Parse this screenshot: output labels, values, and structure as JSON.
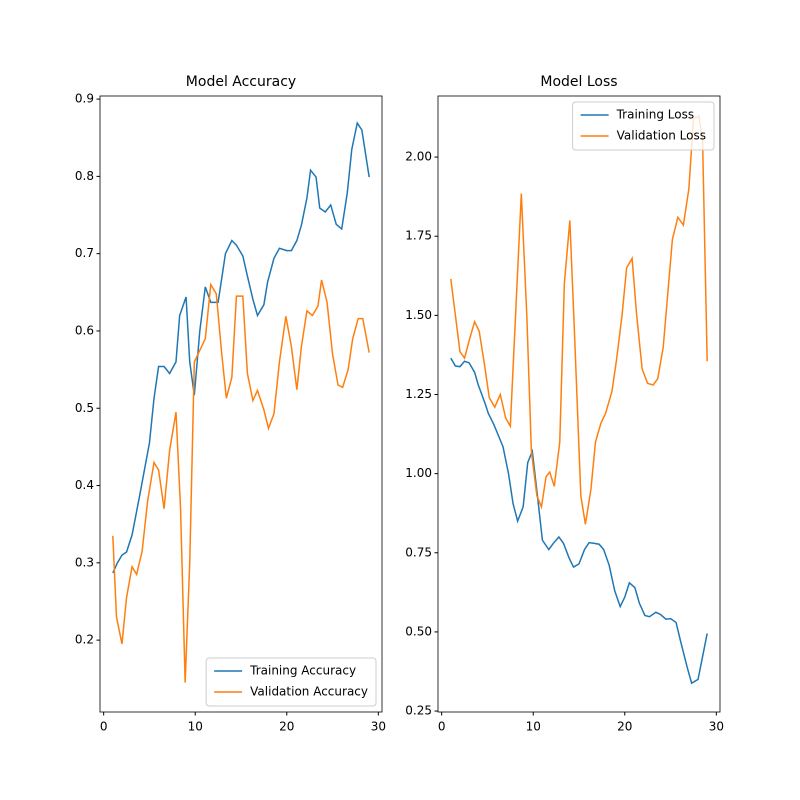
{
  "chart_data": [
    {
      "type": "line",
      "title": "Model Accuracy",
      "xlim": [
        -0.4,
        30.4
      ],
      "xticks": [
        0,
        10,
        20,
        30
      ],
      "ylim": [
        0.107,
        0.904
      ],
      "yticks": [
        0.2,
        0.3,
        0.4,
        0.5,
        0.6,
        0.7,
        0.8,
        0.9
      ],
      "legend": "lower right",
      "series": [
        {
          "name": "Training Accuracy",
          "color": "#1f77b4",
          "x": [
            1.0,
            1.5,
            2.0,
            2.5,
            3.1,
            3.9,
            5.0,
            5.5,
            6.0,
            6.6,
            7.2,
            7.9,
            8.3,
            9.0,
            9.4,
            9.9,
            10.5,
            11.1,
            11.7,
            12.5,
            13.3,
            14.0,
            14.5,
            15.2,
            15.7,
            16.3,
            16.8,
            17.5,
            17.9,
            18.6,
            19.2,
            20.0,
            20.5,
            21.1,
            21.6,
            22.2,
            22.6,
            23.2,
            23.6,
            24.2,
            24.8,
            25.4,
            26.0,
            26.6,
            27.1,
            27.7,
            28.2,
            29.0
          ],
          "values": [
            0.287,
            0.3,
            0.31,
            0.314,
            0.336,
            0.385,
            0.455,
            0.513,
            0.554,
            0.554,
            0.545,
            0.56,
            0.62,
            0.644,
            0.56,
            0.517,
            0.6,
            0.657,
            0.637,
            0.637,
            0.7,
            0.717,
            0.711,
            0.697,
            0.671,
            0.641,
            0.62,
            0.634,
            0.663,
            0.694,
            0.707,
            0.704,
            0.704,
            0.717,
            0.737,
            0.772,
            0.808,
            0.799,
            0.759,
            0.754,
            0.763,
            0.738,
            0.732,
            0.778,
            0.835,
            0.869,
            0.86,
            0.799
          ]
        },
        {
          "name": "Validation Accuracy",
          "color": "#ff7f0e",
          "x": [
            1.0,
            1.4,
            2.0,
            2.5,
            3.1,
            3.6,
            4.2,
            4.8,
            5.5,
            6.0,
            6.6,
            7.2,
            7.9,
            8.4,
            8.9,
            9.4,
            9.9,
            10.5,
            11.1,
            11.7,
            12.3,
            12.9,
            13.4,
            14.0,
            14.5,
            15.2,
            15.7,
            16.3,
            16.8,
            17.5,
            18.0,
            18.6,
            19.2,
            19.9,
            20.5,
            21.1,
            21.6,
            22.2,
            22.8,
            23.4,
            23.8,
            24.4,
            25.0,
            25.6,
            26.1,
            26.7,
            27.2,
            27.8,
            28.3,
            29.0
          ],
          "values": [
            0.335,
            0.23,
            0.195,
            0.255,
            0.295,
            0.285,
            0.315,
            0.38,
            0.43,
            0.42,
            0.37,
            0.445,
            0.495,
            0.37,
            0.145,
            0.3,
            0.56,
            0.575,
            0.59,
            0.66,
            0.648,
            0.57,
            0.513,
            0.54,
            0.645,
            0.645,
            0.545,
            0.51,
            0.523,
            0.498,
            0.474,
            0.493,
            0.56,
            0.619,
            0.58,
            0.524,
            0.58,
            0.626,
            0.62,
            0.632,
            0.666,
            0.637,
            0.57,
            0.53,
            0.527,
            0.55,
            0.59,
            0.616,
            0.616,
            0.572
          ]
        }
      ]
    },
    {
      "type": "line",
      "title": "Model Loss",
      "xlim": [
        -0.4,
        30.4
      ],
      "xticks": [
        0,
        10,
        20,
        30
      ],
      "ylim": [
        0.247,
        2.193
      ],
      "yticks": [
        0.25,
        {
          "value": 0.5,
          "label": "0.50"
        },
        0.75,
        {
          "value": 1,
          "label": "1.00"
        },
        1.25,
        {
          "value": 1.5,
          "label": "1.50"
        },
        1.75,
        {
          "value": 2,
          "label": "2.00"
        }
      ],
      "legend": "upper right",
      "series": [
        {
          "name": "Training Loss",
          "color": "#1f77b4",
          "x": [
            1.0,
            1.5,
            2.0,
            2.5,
            3.0,
            3.6,
            4.0,
            4.7,
            5.1,
            5.7,
            6.2,
            6.7,
            7.3,
            7.8,
            8.3,
            8.9,
            9.4,
            9.9,
            10.5,
            11.0,
            11.7,
            12.2,
            12.8,
            13.3,
            13.9,
            14.4,
            15.0,
            15.6,
            16.1,
            16.6,
            17.2,
            17.7,
            18.3,
            18.9,
            19.5,
            20.0,
            20.5,
            21.1,
            21.6,
            22.2,
            22.7,
            23.4,
            23.9,
            24.5,
            25.0,
            25.6,
            26.1,
            26.8,
            27.3,
            28.0,
            29.0
          ],
          "values": [
            1.365,
            1.34,
            1.338,
            1.355,
            1.35,
            1.32,
            1.28,
            1.225,
            1.19,
            1.155,
            1.12,
            1.085,
            1.0,
            0.905,
            0.85,
            0.895,
            1.035,
            1.07,
            0.92,
            0.79,
            0.76,
            0.78,
            0.8,
            0.78,
            0.735,
            0.705,
            0.715,
            0.76,
            0.782,
            0.78,
            0.777,
            0.76,
            0.71,
            0.63,
            0.58,
            0.61,
            0.655,
            0.64,
            0.59,
            0.552,
            0.548,
            0.562,
            0.555,
            0.54,
            0.542,
            0.53,
            0.47,
            0.39,
            0.338,
            0.35,
            0.495
          ]
        },
        {
          "name": "Validation Loss",
          "color": "#ff7f0e",
          "x": [
            1.0,
            1.5,
            2.0,
            2.5,
            3.0,
            3.6,
            4.1,
            4.7,
            5.2,
            5.8,
            6.4,
            7.0,
            7.5,
            8.2,
            8.7,
            9.3,
            9.8,
            10.4,
            10.9,
            11.4,
            11.8,
            12.3,
            12.9,
            13.4,
            14.0,
            14.5,
            15.2,
            15.7,
            16.3,
            16.8,
            17.4,
            17.9,
            18.6,
            19.1,
            19.7,
            20.2,
            20.8,
            21.3,
            21.9,
            22.5,
            23.1,
            23.6,
            24.2,
            24.7,
            25.2,
            25.8,
            26.4,
            27.0,
            27.5,
            28.1,
            28.5,
            29.0
          ],
          "values": [
            1.615,
            1.5,
            1.385,
            1.365,
            1.42,
            1.48,
            1.45,
            1.34,
            1.24,
            1.21,
            1.25,
            1.175,
            1.15,
            1.58,
            1.885,
            1.5,
            1.07,
            0.93,
            0.895,
            0.99,
            1.005,
            0.96,
            1.1,
            1.6,
            1.8,
            1.45,
            0.93,
            0.84,
            0.95,
            1.1,
            1.16,
            1.19,
            1.26,
            1.36,
            1.5,
            1.65,
            1.68,
            1.5,
            1.33,
            1.285,
            1.28,
            1.3,
            1.4,
            1.57,
            1.74,
            1.81,
            1.785,
            1.9,
            2.12,
            2.13,
            2.05,
            1.355
          ]
        }
      ]
    }
  ]
}
